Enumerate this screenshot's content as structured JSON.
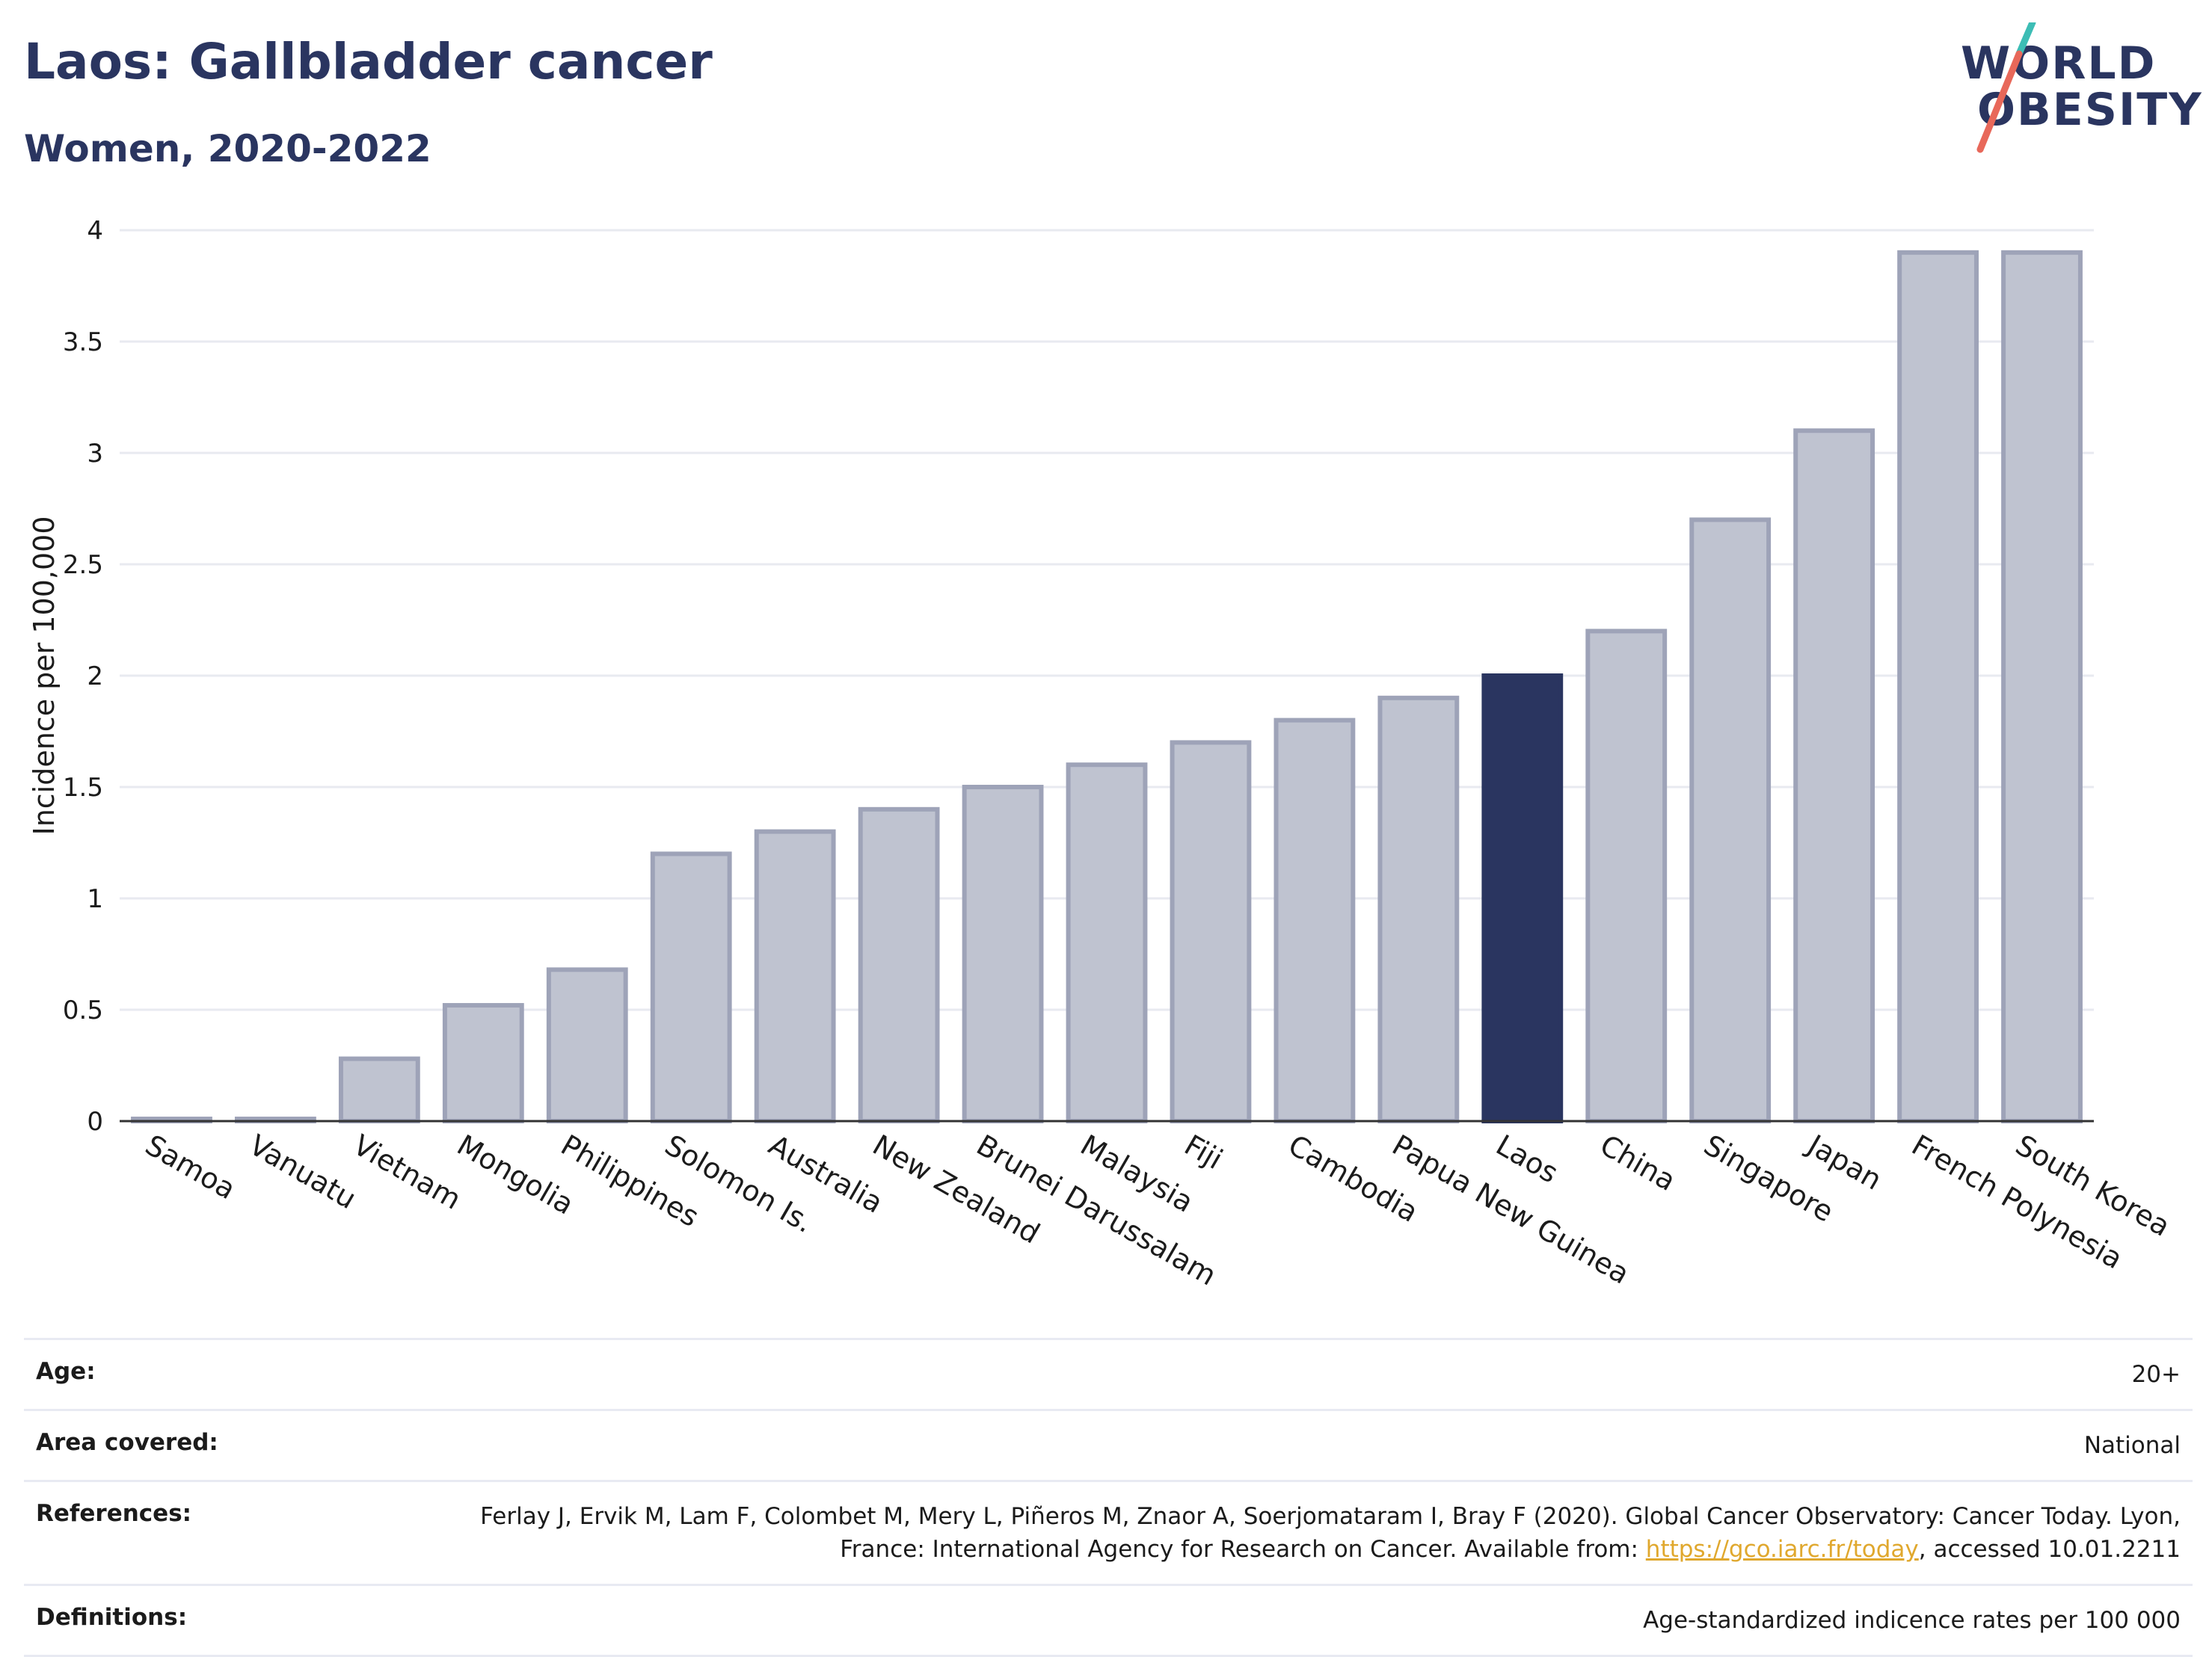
{
  "header": {
    "title": "Laos: Gallbladder cancer",
    "subtitle": "Women, 2020-2022"
  },
  "logo": {
    "line1": "WORLD",
    "line2": "OBESITY",
    "colors": {
      "text": "#2a3560",
      "slash_top": "#3dbdb5",
      "slash_bottom": "#e8685a"
    }
  },
  "colors": {
    "bar": "#bfc3d0",
    "bar_stroke": "#9ea3b8",
    "highlight": "#2a3560",
    "grid": "#e8eaf0",
    "axis": "#333333"
  },
  "chart_data": {
    "type": "bar",
    "ylabel": "Incidence per 100,000",
    "ylim": [
      0,
      4
    ],
    "yticks": [
      "0",
      "0.5",
      "1",
      "1.5",
      "2",
      "2.5",
      "3",
      "3.5",
      "4"
    ],
    "grid": true,
    "highlight": "Laos",
    "categories": [
      "Samoa",
      "Vanuatu",
      "Vietnam",
      "Mongolia",
      "Philippines",
      "Solomon Is.",
      "Australia",
      "New Zealand",
      "Brunei Darussalam",
      "Malaysia",
      "Fiji",
      "Cambodia",
      "Papua New Guinea",
      "Laos",
      "China",
      "Singapore",
      "Japan",
      "French Polynesia",
      "South Korea"
    ],
    "values": [
      0.01,
      0.01,
      0.28,
      0.52,
      0.68,
      1.2,
      1.3,
      1.4,
      1.5,
      1.6,
      1.7,
      1.8,
      1.9,
      2.0,
      2.2,
      2.7,
      3.1,
      3.9,
      3.9
    ]
  },
  "meta": {
    "age_label": "Age:",
    "age_value": "20+",
    "area_label": "Area covered:",
    "area_value": "National",
    "references_label": "References:",
    "references_text_1": "Ferlay J, Ervik M, Lam F, Colombet M, Mery L, Piñeros M, Znaor A, Soerjomataram I, Bray F (2020). Global Cancer Observatory: Cancer Today. Lyon, France: International Agency for Research on Cancer. Available from: ",
    "references_link": "https://gco.iarc.fr/today",
    "references_text_2": ", accessed 10.01.2211",
    "definitions_label": "Definitions:",
    "definitions_value": "Age-standardized indicence rates per 100 000"
  }
}
